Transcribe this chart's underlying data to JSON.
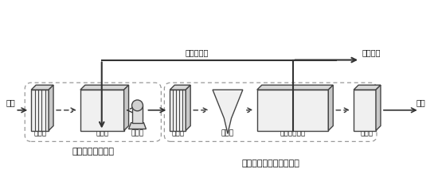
{
  "title_left": "预处理厌氧调节池",
  "title_right": "污水生化处理一体化装置",
  "labels_left": [
    "粗格栅",
    "调节池",
    "提升泵"
  ],
  "labels_right": [
    "细格栅",
    "沉砂池",
    "气提循环主池",
    "消毒渠"
  ],
  "inflow_label": "进水",
  "outflow_label": "出水",
  "sludge_return_label": "污泥外回流",
  "sludge_treatment_label": "污泥处理",
  "bg_color": "#ffffff",
  "ec": "#444444",
  "arrow_color": "#333333",
  "text_color": "#111111",
  "dashed_color": "#999999"
}
